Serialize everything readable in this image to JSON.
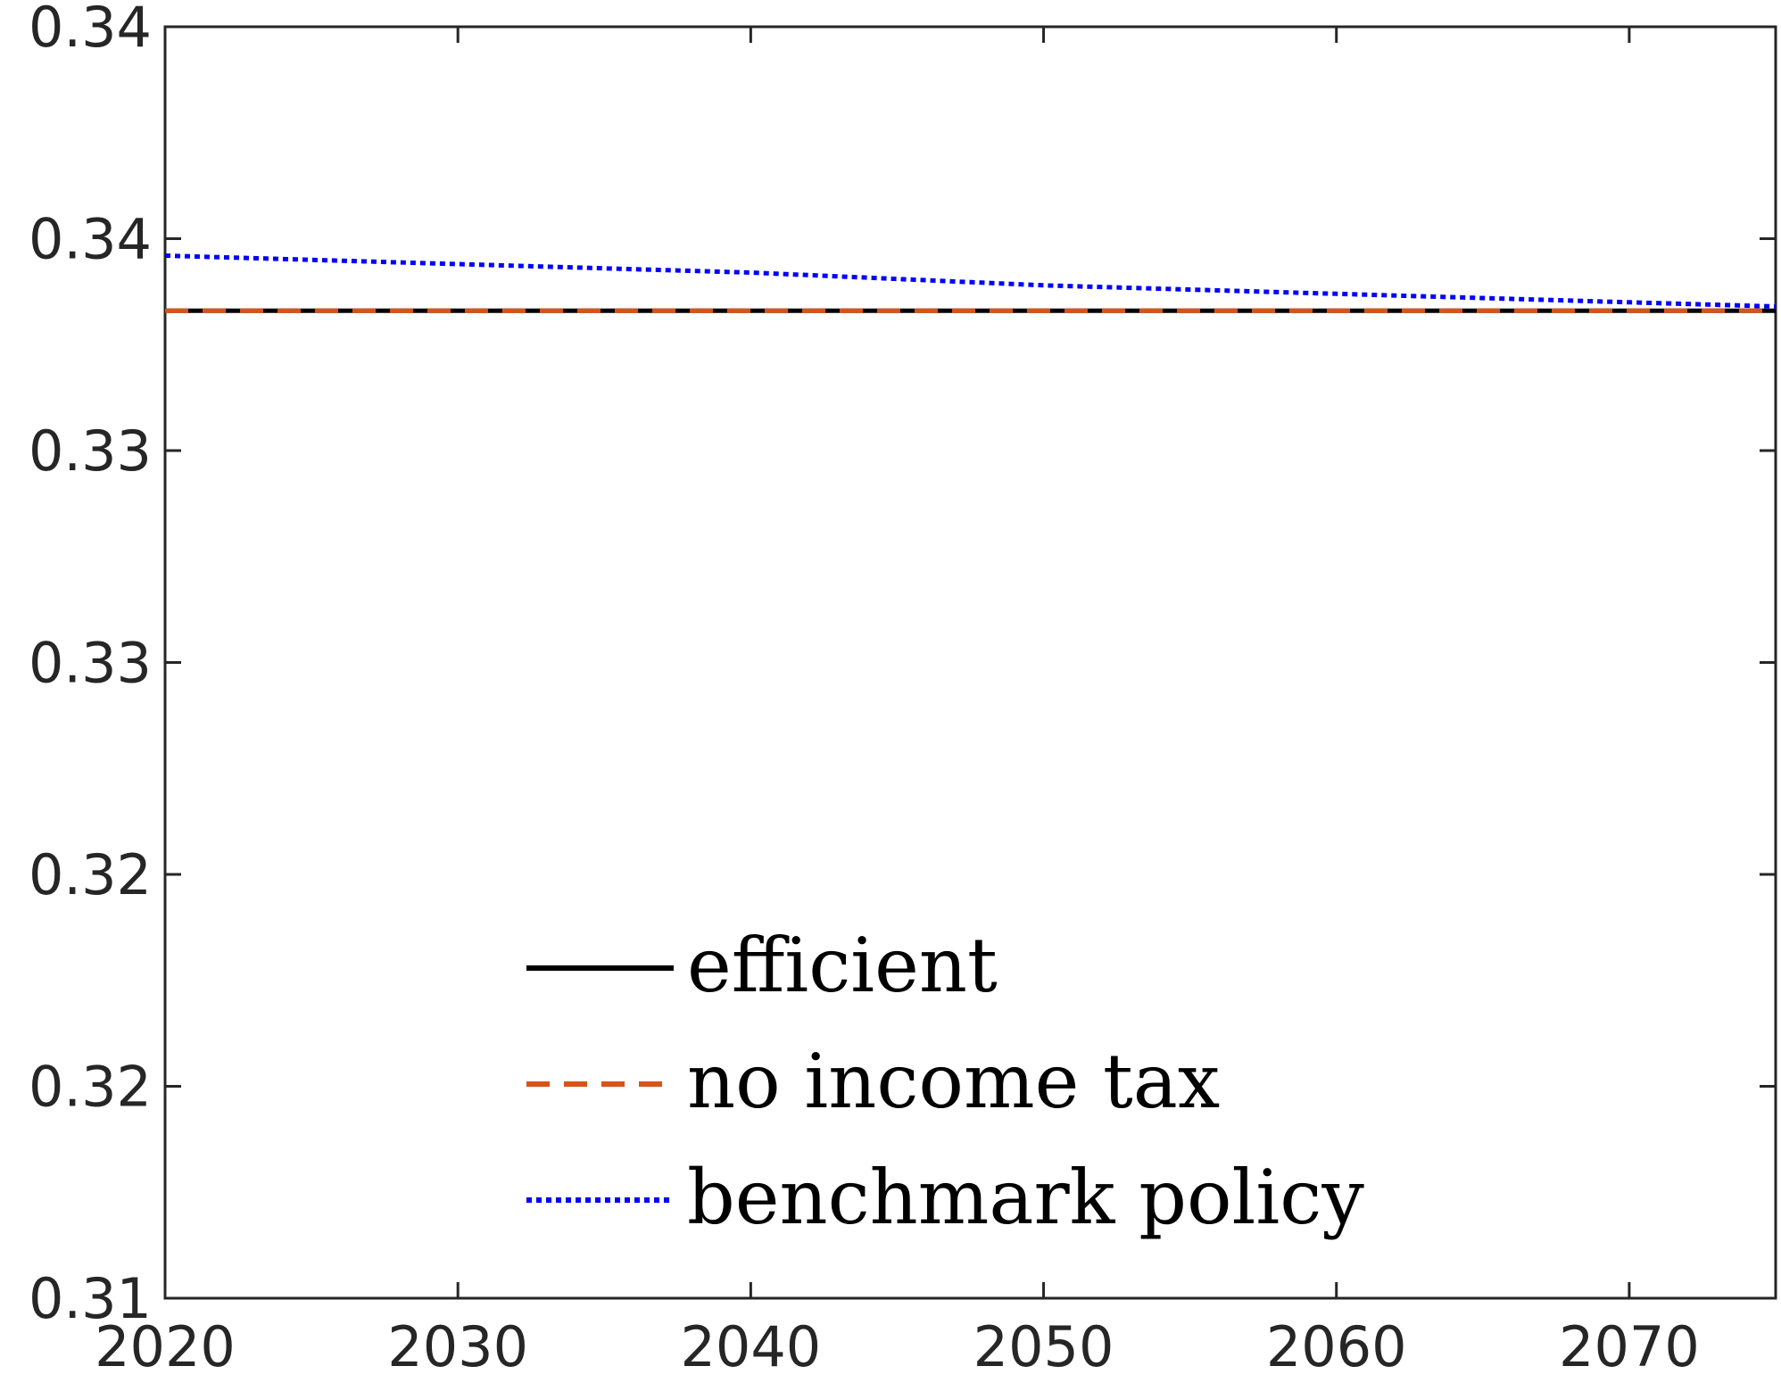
{
  "chart_data": {
    "type": "line",
    "title": "",
    "xlabel": "",
    "ylabel": "",
    "xlim": [
      2020,
      2075
    ],
    "ylim": [
      0.31,
      0.34
    ],
    "xticks": [
      2020,
      2030,
      2040,
      2050,
      2060,
      2070
    ],
    "xtick_labels": [
      "2020",
      "2030",
      "2040",
      "2050",
      "2060",
      "2070"
    ],
    "yticks": [
      0.31,
      0.315,
      0.32,
      0.325,
      0.33,
      0.335,
      0.34
    ],
    "ytick_labels": [
      "0.31",
      "0.32",
      "0.32",
      "0.33",
      "0.33",
      "0.34",
      "0.34"
    ],
    "grid": false,
    "legend_position": "bottom-center",
    "series": [
      {
        "name": "efficient",
        "color": "#000000",
        "style": "solid",
        "x": [
          2020,
          2075
        ],
        "y": [
          0.3333,
          0.3333
        ]
      },
      {
        "name": "no income tax",
        "color": "#D95319",
        "style": "dashed",
        "x": [
          2020,
          2075
        ],
        "y": [
          0.3333,
          0.3333
        ]
      },
      {
        "name": "benchmark policy",
        "color": "#0000FF",
        "style": "dotted",
        "x": [
          2020,
          2030,
          2040,
          2050,
          2060,
          2070,
          2075
        ],
        "y": [
          0.3346,
          0.3344,
          0.3342,
          0.3339,
          0.3337,
          0.3335,
          0.3334
        ]
      }
    ]
  }
}
